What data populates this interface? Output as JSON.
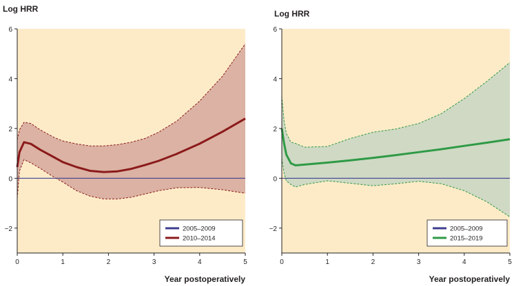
{
  "chart_data": [
    {
      "type": "line",
      "ylabel": "Log HRR",
      "xlabel": "Year postoperatively",
      "xlim": [
        0,
        5
      ],
      "ylim": [
        -3,
        6
      ],
      "xticks": [
        "0",
        "1",
        "2",
        "3",
        "4",
        "5"
      ],
      "yticks": [
        "−2",
        "0",
        "2",
        "4",
        "6"
      ],
      "background": "#fdebc8",
      "grid": false,
      "legend_position": "bottom-right",
      "series": [
        {
          "name": "2005–2009",
          "color": "#3d3d8f",
          "x": [
            0,
            5
          ],
          "y": [
            0,
            0
          ]
        },
        {
          "name": "2010–2014",
          "color": "#8b1a1a",
          "band_fill": "#dbb2a3",
          "x": [
            0,
            0.05,
            0.15,
            0.3,
            0.5,
            0.8,
            1.0,
            1.3,
            1.6,
            1.9,
            2.2,
            2.5,
            2.8,
            3.1,
            3.5,
            4.0,
            4.5,
            5.0
          ],
          "y": [
            0.45,
            1.05,
            1.45,
            1.38,
            1.15,
            0.85,
            0.65,
            0.45,
            0.3,
            0.25,
            0.28,
            0.38,
            0.53,
            0.7,
            0.98,
            1.39,
            1.87,
            2.4
          ],
          "ci_lower": [
            -0.8,
            0.3,
            0.75,
            0.62,
            0.4,
            0.05,
            -0.15,
            -0.5,
            -0.72,
            -0.83,
            -0.83,
            -0.76,
            -0.63,
            -0.5,
            -0.38,
            -0.37,
            -0.46,
            -0.6
          ],
          "ci_upper": [
            1.55,
            1.95,
            2.25,
            2.2,
            1.95,
            1.65,
            1.5,
            1.38,
            1.3,
            1.3,
            1.35,
            1.45,
            1.6,
            1.85,
            2.3,
            3.1,
            4.1,
            5.4
          ]
        }
      ]
    },
    {
      "type": "line",
      "ylabel": "Log HRR",
      "xlabel": "Year postoperatively",
      "xlim": [
        0,
        5
      ],
      "ylim": [
        -3,
        6
      ],
      "xticks": [
        "0",
        "1",
        "2",
        "3",
        "4",
        "5"
      ],
      "yticks": [
        "−2",
        "0",
        "2",
        "4",
        "6"
      ],
      "background": "#fdebc8",
      "grid": false,
      "legend_position": "bottom-right",
      "series": [
        {
          "name": "2005–2009",
          "color": "#3d3d8f",
          "x": [
            0,
            5
          ],
          "y": [
            0,
            0
          ]
        },
        {
          "name": "2015–2019",
          "color": "#2e9a45",
          "band_fill": "#cfd9c4",
          "x": [
            0,
            0.05,
            0.1,
            0.2,
            0.3,
            0.5,
            1.0,
            1.5,
            2.0,
            2.5,
            3.0,
            3.5,
            4.0,
            4.5,
            5.0
          ],
          "y": [
            2.0,
            1.4,
            0.95,
            0.6,
            0.52,
            0.55,
            0.63,
            0.72,
            0.82,
            0.93,
            1.05,
            1.17,
            1.3,
            1.43,
            1.57
          ],
          "ci_lower": [
            0.8,
            0.2,
            -0.1,
            -0.25,
            -0.35,
            -0.25,
            -0.1,
            -0.2,
            -0.3,
            -0.22,
            -0.12,
            -0.22,
            -0.5,
            -0.95,
            -1.55
          ],
          "ci_upper": [
            3.3,
            2.3,
            1.8,
            1.45,
            1.4,
            1.25,
            1.28,
            1.6,
            1.85,
            1.98,
            2.2,
            2.6,
            3.2,
            3.9,
            4.65
          ]
        }
      ]
    }
  ]
}
